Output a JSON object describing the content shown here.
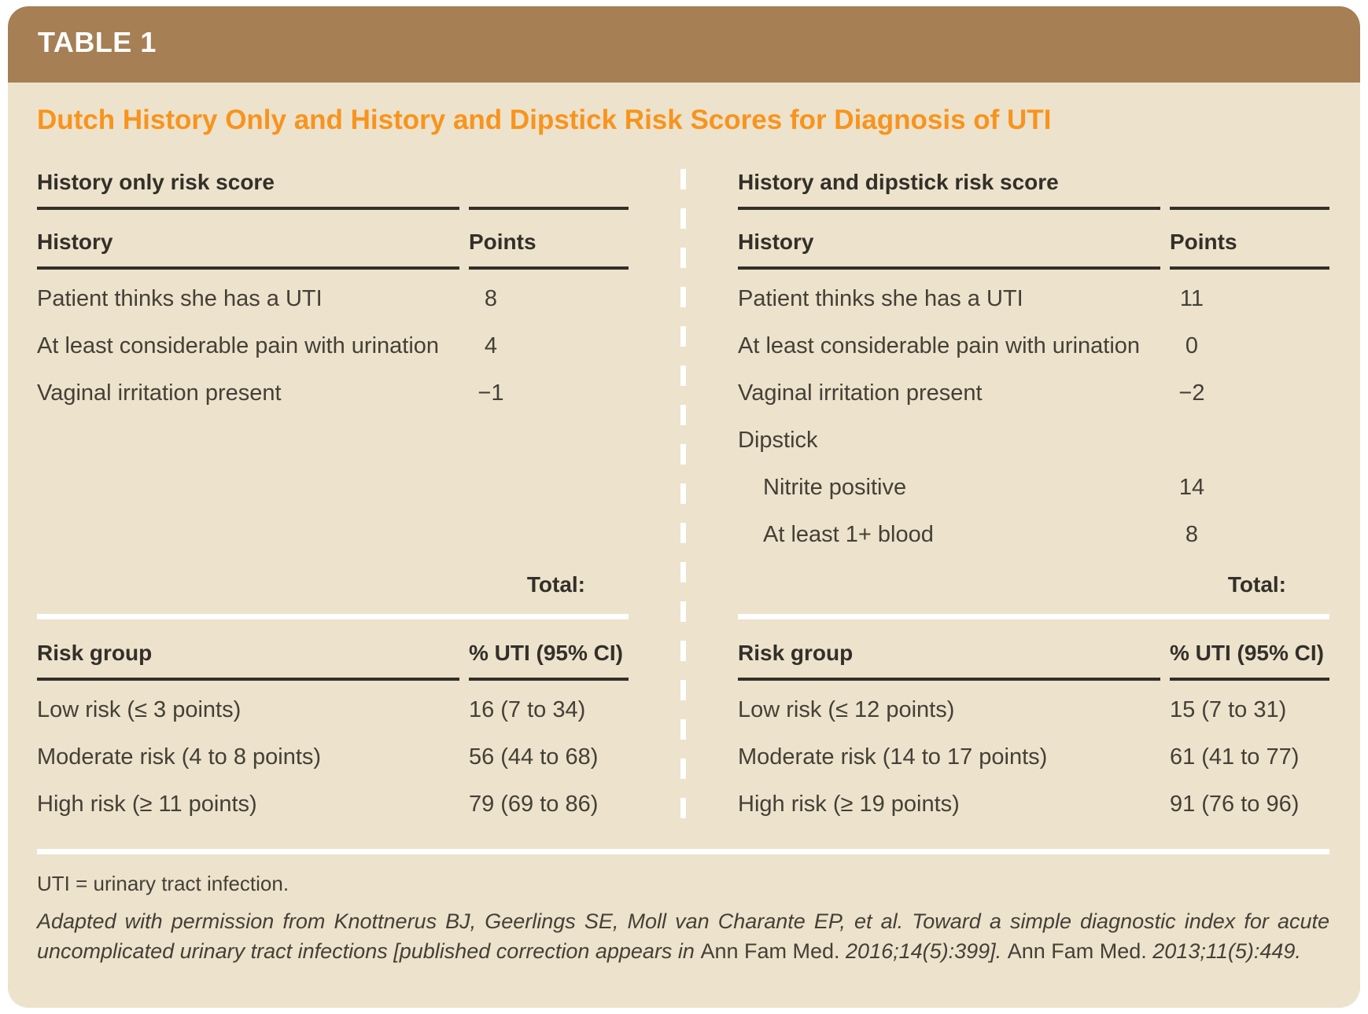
{
  "table_tag": "TABLE 1",
  "title": "Dutch History Only and History and Dipstick Risk Scores for Diagnosis of UTI",
  "panels": [
    {
      "section_title": "History only risk score",
      "columns": {
        "history": "History",
        "points": "Points"
      },
      "rows": [
        {
          "label": "Patient thinks she has a UTI",
          "points": "8"
        },
        {
          "label": "At least considerable pain with urination",
          "points": "4"
        },
        {
          "label": "Vaginal irritation present",
          "points": "−1"
        }
      ],
      "total_label": "Total:",
      "risk_columns": {
        "group": "Risk group",
        "uti": "% UTI (95% CI)"
      },
      "risk_rows": [
        {
          "group": "Low risk (≤ 3 points)",
          "uti": "16 (7 to 34)"
        },
        {
          "group": "Moderate risk (4 to 8 points)",
          "uti": "56 (44 to 68)"
        },
        {
          "group": "High risk (≥ 11 points)",
          "uti": "79 (69 to 86)"
        }
      ]
    },
    {
      "section_title": "History and dipstick risk score",
      "columns": {
        "history": "History",
        "points": "Points"
      },
      "rows": [
        {
          "label": "Patient thinks she has a UTI",
          "points": "11"
        },
        {
          "label": "At least considerable pain with urination",
          "points": "0"
        },
        {
          "label": "Vaginal irritation present",
          "points": "−2"
        },
        {
          "label": "Dipstick",
          "points": "",
          "subheading": true
        },
        {
          "label": "Nitrite positive",
          "points": "14",
          "indent": true
        },
        {
          "label": "At least 1+ blood",
          "points": "8",
          "indent": true
        }
      ],
      "total_label": "Total:",
      "risk_columns": {
        "group": "Risk group",
        "uti": "% UTI (95% CI)"
      },
      "risk_rows": [
        {
          "group": "Low risk (≤ 12 points)",
          "uti": "15 (7 to 31)"
        },
        {
          "group": "Moderate risk (14 to 17 points)",
          "uti": "61 (41 to 77)"
        },
        {
          "group": "High risk (≥ 19 points)",
          "uti": "91 (76 to 96)"
        }
      ]
    }
  ],
  "footnotes": {
    "abbreviation": "UTI = urinary tract infection.",
    "citation_segments": [
      {
        "text": "Adapted with permission from Knottnerus BJ, Geerlings SE, Moll van Charante EP, et al. Toward a simple diagnostic index for acute uncomplicated urinary tract infections [published correction appears in ",
        "italic": true
      },
      {
        "text": "Ann Fam Med. ",
        "italic": false
      },
      {
        "text": "2016;14(5):399]. ",
        "italic": true
      },
      {
        "text": "Ann Fam Med. ",
        "italic": false
      },
      {
        "text": "2013;11(5):449.",
        "italic": true
      }
    ]
  },
  "colors": {
    "header_bar_brown": "#a67f55",
    "card_beige": "#ede2cb",
    "title_orange": "#f7941e",
    "heading_text": "#33302a",
    "body_text": "#444037",
    "rule_dark": "#33302a",
    "rule_white": "#ffffff"
  }
}
